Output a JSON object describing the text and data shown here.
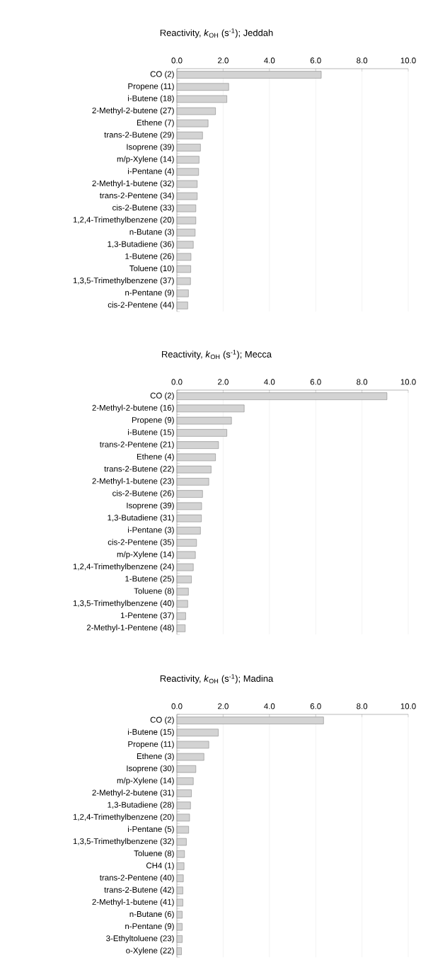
{
  "chart_data": [
    {
      "type": "bar",
      "orientation": "horizontal",
      "title": "Reactivity, *k*$_{OH}$ (s$^{-1}$); Jeddah",
      "grid": "x",
      "color": "#d3d3d3",
      "categories": [
        "CO (2)",
        "Propene (11)",
        "i-Butene (18)",
        "2-Methyl-2-butene (27)",
        "Ethene (7)",
        "trans-2-Butene (29)",
        "Isoprene (39)",
        "m/p-Xylene  (14)",
        "i-Pentane (4)",
        "2-Methyl-1-butene (32)",
        "trans-2-Pentene (34)",
        "cis-2-Butene (33)",
        "1,2,4-Trimethylbenzene (20)",
        "n-Butane (3)",
        "1,3-Butadiene (36)",
        "1-Butene (26)",
        "Toluene (10)",
        "1,3,5-Trimethylbenzene (37)",
        "n-Pentane (9)",
        "cis-2-Pentene (44)"
      ],
      "values": [
        6.24,
        2.24,
        2.16,
        1.67,
        1.35,
        1.11,
        1.02,
        0.96,
        0.94,
        0.88,
        0.88,
        0.82,
        0.82,
        0.79,
        0.71,
        0.61,
        0.6,
        0.59,
        0.5,
        0.47
      ],
      "xlim": [
        0,
        10
      ],
      "xticks": [
        {
          "value": 0,
          "label": "0.0"
        },
        {
          "value": 2,
          "label": "2.0"
        },
        {
          "value": 4,
          "label": "4.0"
        },
        {
          "value": 6,
          "label": "6.0"
        },
        {
          "value": 8,
          "label": "8.0"
        },
        {
          "value": 10,
          "label": "10.0"
        }
      ]
    },
    {
      "type": "bar",
      "orientation": "horizontal",
      "title": "Reactivity, *k*$_{OH}$ (s$^{-1}$); Mecca",
      "grid": "x",
      "color": "#d3d3d3",
      "categories": [
        "CO (2)",
        "2-Methyl-2-butene (16)",
        "Propene (9)",
        "i-Butene (15)",
        "trans-2-Pentene (21)",
        "Ethene (4)",
        "trans-2-Butene (22)",
        "2-Methyl-1-butene (23)",
        "cis-2-Butene (26)",
        "Isoprene (39)",
        "1,3-Butadiene (31)",
        "i-Pentane (3)",
        "cis-2-Pentene (35)",
        "m/p-Xylene  (14)",
        "1,2,4-Trimethylbenzene (24)",
        "1-Butene (25)",
        "Toluene (8)",
        "1,3,5-Trimethylbenzene (40)",
        "1-Pentene (37)",
        "2-Methyl-1-Pentene (48)"
      ],
      "values": [
        9.08,
        2.91,
        2.36,
        2.16,
        1.8,
        1.67,
        1.48,
        1.38,
        1.11,
        1.07,
        1.06,
        1.02,
        0.85,
        0.8,
        0.71,
        0.63,
        0.5,
        0.47,
        0.38,
        0.36
      ],
      "xlim": [
        0,
        10
      ],
      "xticks": [
        {
          "value": 0,
          "label": "0.0"
        },
        {
          "value": 2,
          "label": "2.0"
        },
        {
          "value": 4,
          "label": "4.0"
        },
        {
          "value": 6,
          "label": "6.0"
        },
        {
          "value": 8,
          "label": "8.0"
        },
        {
          "value": 10,
          "label": "10.0"
        }
      ]
    },
    {
      "type": "bar",
      "orientation": "horizontal",
      "title": "Reactivity, *k*$_{OH}$ (s$^{-1}$); Madina",
      "grid": "x",
      "color": "#d3d3d3",
      "categories": [
        "CO (2)",
        "i-Butene (15)",
        "Propene (11)",
        "Ethene (3)",
        "Isoprene (30)",
        "m/p-Xylene  (14)",
        "2-Methyl-2-butene (31)",
        "1,3-Butadiene (28)",
        "1,2,4-Trimethylbenzene (20)",
        "i-Pentane (5)",
        "1,3,5-Trimethylbenzene (32)",
        "Toluene (8)",
        "CH4 (1)",
        "trans-2-Pentene (40)",
        "trans-2-Butene (42)",
        "2-Methyl-1-butene (41)",
        "n-Butane (6)",
        "n-Pentane (9)",
        "3-Ethyltoluene (23)",
        "o-Xylene (22)"
      ],
      "values": [
        6.34,
        1.79,
        1.38,
        1.17,
        0.82,
        0.71,
        0.63,
        0.59,
        0.55,
        0.51,
        0.41,
        0.33,
        0.31,
        0.28,
        0.26,
        0.26,
        0.23,
        0.23,
        0.23,
        0.2
      ],
      "xlim": [
        0,
        10
      ],
      "xticks": [
        {
          "value": 0,
          "label": "0.0"
        },
        {
          "value": 2,
          "label": "2.0"
        },
        {
          "value": 4,
          "label": "4.0"
        },
        {
          "value": 6,
          "label": "6.0"
        },
        {
          "value": 8,
          "label": "8.0"
        },
        {
          "value": 10,
          "label": "10.0"
        }
      ]
    }
  ]
}
